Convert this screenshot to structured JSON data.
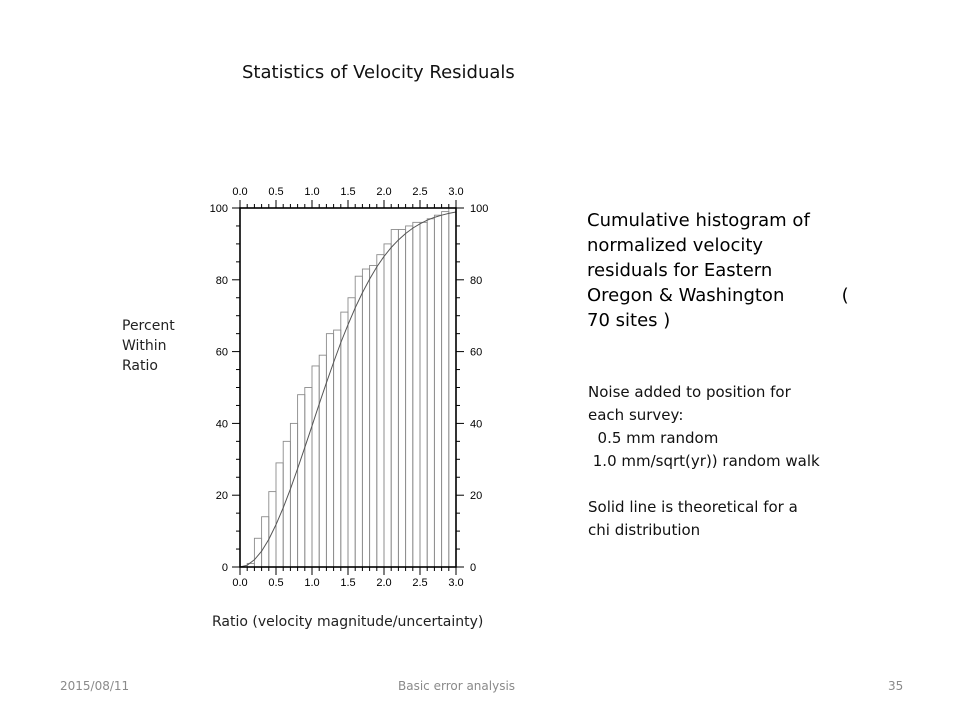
{
  "slide": {
    "title": "Statistics of Velocity Residuals",
    "description_lines": [
      "Cumulative histogram of",
      "normalized velocity",
      "residuals for Eastern",
      "Oregon & Washington          (",
      "70 sites )"
    ],
    "notes_lines": [
      "Noise added to position for",
      "each survey:",
      "  0.5 mm random",
      " 1.0 mm/sqrt(yr)) random walk",
      "",
      "Solid line is theoretical for a",
      "chi distribution"
    ]
  },
  "footer": {
    "date": "2015/08/11",
    "center": "Basic error analysis",
    "page": "35"
  },
  "chart_data": {
    "type": "bar",
    "xlabel": "Ratio (velocity magnitude/uncertainty)",
    "ylabel_lines": [
      "Percent",
      "Within",
      "Ratio"
    ],
    "xlim": [
      0,
      3
    ],
    "ylim": [
      0,
      100
    ],
    "x_ticks": [
      "0.0",
      "0.5",
      "1.0",
      "1.5",
      "2.0",
      "2.5",
      "3.0"
    ],
    "y_ticks": [
      "0",
      "20",
      "40",
      "60",
      "80",
      "100"
    ],
    "bin_width": 0.1,
    "bin_starts": [
      0.0,
      0.1,
      0.2,
      0.3,
      0.4,
      0.5,
      0.6,
      0.7,
      0.8,
      0.9,
      1.0,
      1.1,
      1.2,
      1.3,
      1.4,
      1.5,
      1.6,
      1.7,
      1.8,
      1.9,
      2.0,
      2.1,
      2.2,
      2.3,
      2.4,
      2.5,
      2.6,
      2.7,
      2.8,
      2.9
    ],
    "values": [
      0,
      1,
      8,
      14,
      21,
      29,
      35,
      40,
      48,
      50,
      56,
      59,
      65,
      66,
      71,
      75,
      81,
      83,
      84,
      87,
      90,
      94,
      94,
      95,
      96,
      96,
      97,
      98,
      99,
      100
    ],
    "curve": {
      "x": [
        0,
        0.1,
        0.2,
        0.3,
        0.4,
        0.5,
        0.6,
        0.7,
        0.8,
        0.9,
        1.0,
        1.1,
        1.2,
        1.3,
        1.4,
        1.5,
        1.6,
        1.7,
        1.8,
        1.9,
        2.0,
        2.1,
        2.2,
        2.3,
        2.4,
        2.5,
        2.6,
        2.7,
        2.8,
        2.9,
        3.0
      ],
      "y": [
        0,
        0.5,
        2,
        4.4,
        7.7,
        11.8,
        16.5,
        21.7,
        27.4,
        33.3,
        39.3,
        45.4,
        51.3,
        57.0,
        62.5,
        67.5,
        72.2,
        76.4,
        80.2,
        83.6,
        86.5,
        89.0,
        91.1,
        92.9,
        94.4,
        95.6,
        96.6,
        97.4,
        98.0,
        98.5,
        98.9
      ]
    },
    "grid": false,
    "legend": "none"
  }
}
